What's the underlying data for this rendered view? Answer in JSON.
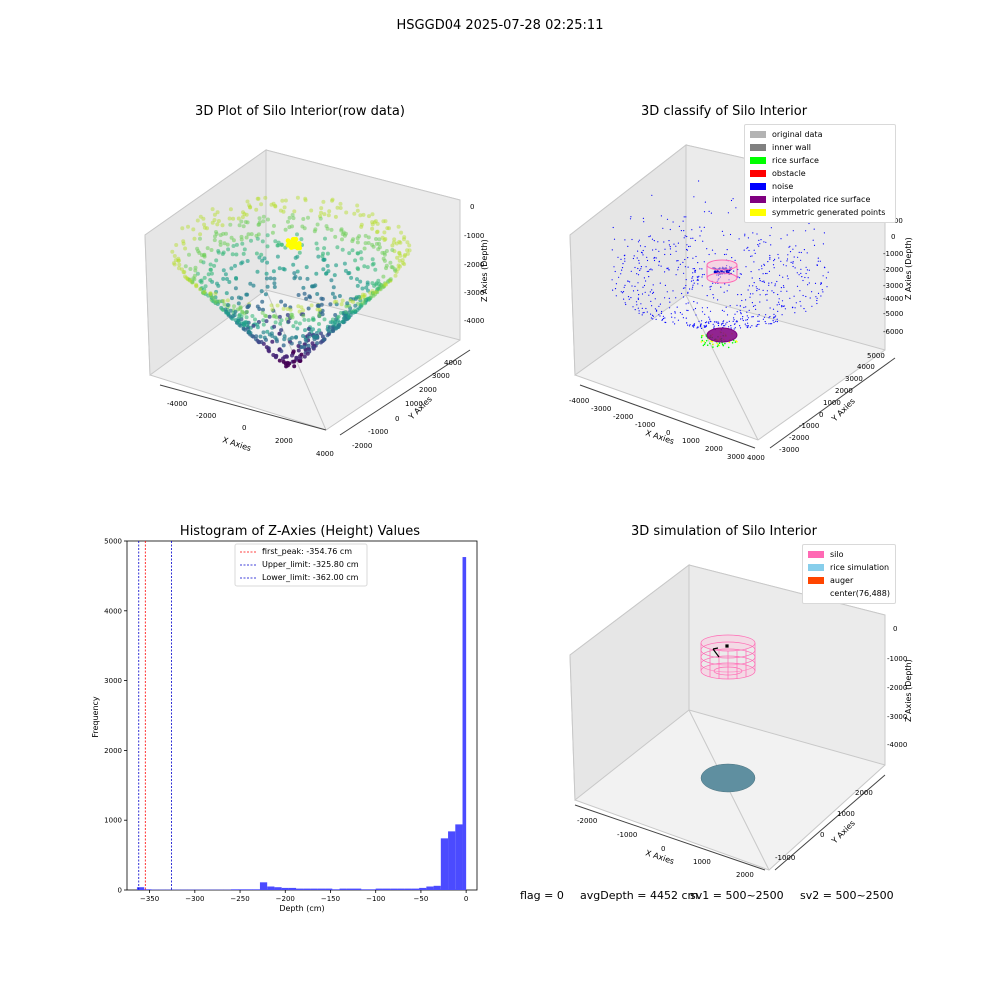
{
  "suptitle": "HSGGD04 2025-07-28 02:25:11",
  "panels": {
    "raw": {
      "title": "3D Plot of Silo Interior(row data)",
      "xlabel": "X Axies",
      "ylabel": "Y Axies",
      "zlabel": "Z Axies (Depth)",
      "xticks": [
        "-4000",
        "-2000",
        "0",
        "2000",
        "4000"
      ],
      "yticks": [
        "-2000",
        "-1000",
        "0",
        "1000",
        "2000",
        "3000",
        "4000"
      ],
      "zticks": [
        "0",
        "-1000",
        "-2000",
        "-3000",
        "-4000"
      ]
    },
    "classify": {
      "title": "3D classify of Silo Interior",
      "xlabel": "X Axies",
      "ylabel": "Y Axies",
      "zlabel": "Z Axies (Depth)",
      "xticks": [
        "-4000",
        "-3000",
        "-2000",
        "-1000",
        "0",
        "1000",
        "2000",
        "3000",
        "4000"
      ],
      "yticks": [
        "-3000",
        "-2000",
        "-1000",
        "0",
        "1000",
        "2000",
        "3000",
        "4000",
        "5000"
      ],
      "zticks": [
        "1000",
        "0",
        "-1000",
        "-2000",
        "-3000",
        "-4000",
        "-5000",
        "-6000"
      ],
      "legend": [
        {
          "label": "original data",
          "color": "#b3b3b3"
        },
        {
          "label": "inner wall",
          "color": "#808080"
        },
        {
          "label": "rice surface",
          "color": "#00ff00"
        },
        {
          "label": "obstacle",
          "color": "#ff0000"
        },
        {
          "label": "noise",
          "color": "#0000ff"
        },
        {
          "label": "interpolated rice surface",
          "color": "#800080"
        },
        {
          "label": "symmetric generated points",
          "color": "#ffff00"
        }
      ]
    },
    "simulation": {
      "title": "3D simulation of Silo Interior",
      "xlabel": "X Axies",
      "ylabel": "Y Axies",
      "zlabel": "Z Axies (Depth)",
      "xticks": [
        "-2000",
        "-1000",
        "0",
        "1000",
        "2000"
      ],
      "yticks": [
        "-1000",
        "0",
        "1000",
        "2000"
      ],
      "zticks": [
        "0",
        "-1000",
        "-2000",
        "-3000",
        "-4000"
      ],
      "legend": [
        {
          "label": "silo",
          "color": "#ff69b4"
        },
        {
          "label": "rice simulation",
          "color": "#87ceeb"
        },
        {
          "label": "auger",
          "color": "#ff4500"
        },
        {
          "label": "center(76,488)",
          "color": "#ffffff"
        }
      ]
    }
  },
  "footer": {
    "flag": "flag = 0",
    "avg": "avgDepth = 4452 cm",
    "sv1": "sv1 = 500~2500",
    "sv2": "sv2 = 500~2500"
  },
  "chart_data": {
    "type": "bar",
    "title": "Histogram of Z-Axies (Height) Values",
    "xlabel": "Depth (cm)",
    "ylabel": "Frequency",
    "xlim": [
      -375,
      12
    ],
    "ylim": [
      0,
      5000
    ],
    "xticks": [
      "-350",
      "-300",
      "-250",
      "-200",
      "-150",
      "-100",
      "-50",
      "0"
    ],
    "yticks": [
      "0",
      "1000",
      "2000",
      "3000",
      "4000",
      "5000"
    ],
    "bar_color": "#4b4bff",
    "bins": [
      {
        "x0": -364,
        "x1": -356,
        "value": 40
      },
      {
        "x0": -356,
        "x1": -348,
        "value": 10
      },
      {
        "x0": -348,
        "x1": -340,
        "value": 5
      },
      {
        "x0": -340,
        "x1": -332,
        "value": 5
      },
      {
        "x0": -332,
        "x1": -324,
        "value": 5
      },
      {
        "x0": -324,
        "x1": -316,
        "value": 5
      },
      {
        "x0": -316,
        "x1": -308,
        "value": 5
      },
      {
        "x0": -308,
        "x1": -300,
        "value": 5
      },
      {
        "x0": -300,
        "x1": -292,
        "value": 5
      },
      {
        "x0": -292,
        "x1": -284,
        "value": 5
      },
      {
        "x0": -284,
        "x1": -276,
        "value": 5
      },
      {
        "x0": -276,
        "x1": -268,
        "value": 5
      },
      {
        "x0": -268,
        "x1": -260,
        "value": 5
      },
      {
        "x0": -260,
        "x1": -252,
        "value": 10
      },
      {
        "x0": -252,
        "x1": -244,
        "value": 10
      },
      {
        "x0": -244,
        "x1": -236,
        "value": 10
      },
      {
        "x0": -236,
        "x1": -228,
        "value": 10
      },
      {
        "x0": -228,
        "x1": -220,
        "value": 110
      },
      {
        "x0": -220,
        "x1": -212,
        "value": 50
      },
      {
        "x0": -212,
        "x1": -204,
        "value": 40
      },
      {
        "x0": -204,
        "x1": -196,
        "value": 30
      },
      {
        "x0": -196,
        "x1": -188,
        "value": 30
      },
      {
        "x0": -188,
        "x1": -180,
        "value": 20
      },
      {
        "x0": -180,
        "x1": -172,
        "value": 20
      },
      {
        "x0": -172,
        "x1": -164,
        "value": 20
      },
      {
        "x0": -164,
        "x1": -156,
        "value": 20
      },
      {
        "x0": -156,
        "x1": -148,
        "value": 20
      },
      {
        "x0": -148,
        "x1": -140,
        "value": 10
      },
      {
        "x0": -140,
        "x1": -132,
        "value": 20
      },
      {
        "x0": -132,
        "x1": -124,
        "value": 20
      },
      {
        "x0": -124,
        "x1": -116,
        "value": 20
      },
      {
        "x0": -116,
        "x1": -108,
        "value": 10
      },
      {
        "x0": -108,
        "x1": -100,
        "value": 10
      },
      {
        "x0": -100,
        "x1": -92,
        "value": 20
      },
      {
        "x0": -92,
        "x1": -84,
        "value": 20
      },
      {
        "x0": -84,
        "x1": -76,
        "value": 20
      },
      {
        "x0": -76,
        "x1": -68,
        "value": 20
      },
      {
        "x0": -68,
        "x1": -60,
        "value": 20
      },
      {
        "x0": -60,
        "x1": -52,
        "value": 20
      },
      {
        "x0": -52,
        "x1": -44,
        "value": 30
      },
      {
        "x0": -44,
        "x1": -36,
        "value": 50
      },
      {
        "x0": -36,
        "x1": -28,
        "value": 60
      },
      {
        "x0": -28,
        "x1": -20,
        "value": 740
      },
      {
        "x0": -20,
        "x1": -12,
        "value": 840
      },
      {
        "x0": -12,
        "x1": -4,
        "value": 940
      },
      {
        "x0": -4,
        "x1": 0,
        "value": 4770
      }
    ],
    "vlines": [
      {
        "label": "first_peak: -354.76 cm",
        "x": -354.76,
        "color": "#ff0000"
      },
      {
        "label": "Upper_limit: -325.80 cm",
        "x": -325.8,
        "color": "#0000cc"
      },
      {
        "label": "Lower_limit: -362.00 cm",
        "x": -362.0,
        "color": "#0000cc"
      }
    ]
  }
}
